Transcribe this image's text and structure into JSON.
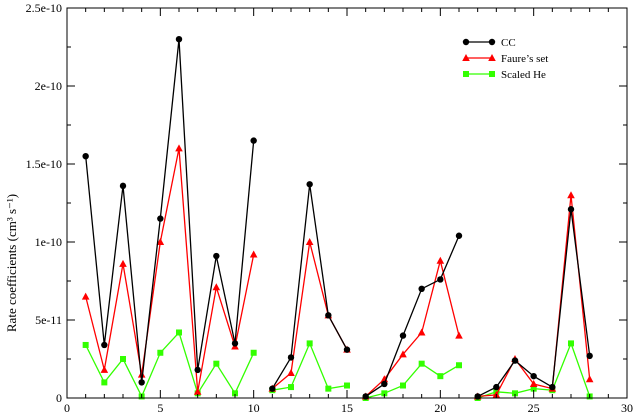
{
  "chart_data": {
    "type": "line",
    "xlabel": "",
    "ylabel": "Rate coefficients (cm³ s⁻¹)",
    "xlim": [
      0,
      30
    ],
    "ylim": [
      0,
      2.5e-10
    ],
    "x_ticks": [
      0,
      5,
      10,
      15,
      20,
      25,
      30
    ],
    "x_tick_labels": [
      "0",
      "5",
      "10",
      "15",
      "20",
      "25",
      "30"
    ],
    "y_ticks": [
      0,
      5e-11,
      1e-10,
      1.5e-10,
      2e-10,
      2.5e-10
    ],
    "y_tick_labels": [
      "0",
      "5e-11",
      "1e-10",
      "1.5e-10",
      "2e-10",
      "2.5e-10"
    ],
    "grid": false,
    "legend_position": "top-right",
    "series": [
      {
        "name": "CC",
        "color": "#000000",
        "marker": "circle",
        "segments": [
          [
            [
              1,
              1.55e-10
            ],
            [
              2,
              3.4e-11
            ],
            [
              3,
              1.36e-10
            ],
            [
              4,
              1e-11
            ],
            [
              5,
              1.15e-10
            ],
            [
              6,
              2.3e-10
            ],
            [
              7,
              1.8e-11
            ],
            [
              8,
              9.1e-11
            ],
            [
              9,
              3.5e-11
            ],
            [
              10,
              1.65e-10
            ]
          ],
          [
            [
              11,
              6e-12
            ],
            [
              12,
              2.6e-11
            ],
            [
              13,
              1.37e-10
            ],
            [
              14,
              5.3e-11
            ],
            [
              15,
              3.1e-11
            ]
          ],
          [
            [
              16,
              1e-12
            ],
            [
              17,
              9e-12
            ],
            [
              18,
              4e-11
            ],
            [
              19,
              7e-11
            ],
            [
              20,
              7.6e-11
            ],
            [
              21,
              1.04e-10
            ]
          ],
          [
            [
              22,
              1e-12
            ],
            [
              23,
              7e-12
            ],
            [
              24,
              2.4e-11
            ],
            [
              25,
              1.4e-11
            ],
            [
              26,
              7e-12
            ],
            [
              27,
              1.21e-10
            ],
            [
              28,
              2.7e-11
            ]
          ]
        ]
      },
      {
        "name": "Faure’s set",
        "color": "#ff0000",
        "marker": "triangle",
        "segments": [
          [
            [
              1,
              6.5e-11
            ],
            [
              2,
              1.8e-11
            ],
            [
              3,
              8.6e-11
            ],
            [
              4,
              1.5e-11
            ],
            [
              5,
              1e-10
            ],
            [
              6,
              1.6e-10
            ],
            [
              7,
              4e-12
            ],
            [
              8,
              7.1e-11
            ],
            [
              9,
              3.3e-11
            ],
            [
              10,
              9.2e-11
            ]
          ],
          [
            [
              11,
              6e-12
            ],
            [
              12,
              1.6e-11
            ],
            [
              13,
              1e-10
            ],
            [
              14,
              5.3e-11
            ],
            [
              15,
              3.1e-11
            ]
          ],
          [
            [
              16,
              1e-12
            ],
            [
              17,
              1.2e-11
            ],
            [
              18,
              2.8e-11
            ],
            [
              19,
              4.2e-11
            ],
            [
              20,
              8.8e-11
            ],
            [
              21,
              4e-11
            ]
          ],
          [
            [
              22,
              1e-12
            ],
            [
              23,
              2e-12
            ],
            [
              24,
              2.5e-11
            ],
            [
              25,
              9e-12
            ],
            [
              26,
              6e-12
            ],
            [
              27,
              1.3e-10
            ],
            [
              28,
              1.2e-11
            ]
          ]
        ]
      },
      {
        "name": "Scaled He",
        "color": "#33ff00",
        "marker": "square",
        "segments": [
          [
            [
              1,
              3.4e-11
            ],
            [
              2,
              1e-11
            ],
            [
              3,
              2.5e-11
            ],
            [
              4,
              1e-12
            ],
            [
              5,
              2.9e-11
            ],
            [
              6,
              4.2e-11
            ],
            [
              7,
              3e-12
            ],
            [
              8,
              2.2e-11
            ],
            [
              9,
              3e-12
            ],
            [
              10,
              2.9e-11
            ]
          ],
          [
            [
              11,
              5e-12
            ],
            [
              12,
              7e-12
            ],
            [
              13,
              3.5e-11
            ],
            [
              14,
              6e-12
            ],
            [
              15,
              8e-12
            ]
          ],
          [
            [
              16,
              0
            ],
            [
              17,
              3e-12
            ],
            [
              18,
              8e-12
            ],
            [
              19,
              2.2e-11
            ],
            [
              20,
              1.4e-11
            ],
            [
              21,
              2.1e-11
            ]
          ],
          [
            [
              22,
              0
            ],
            [
              23,
              4e-12
            ],
            [
              24,
              3e-12
            ],
            [
              25,
              6e-12
            ],
            [
              26,
              5e-12
            ],
            [
              27,
              3.5e-11
            ],
            [
              28,
              1e-12
            ]
          ]
        ]
      }
    ]
  }
}
